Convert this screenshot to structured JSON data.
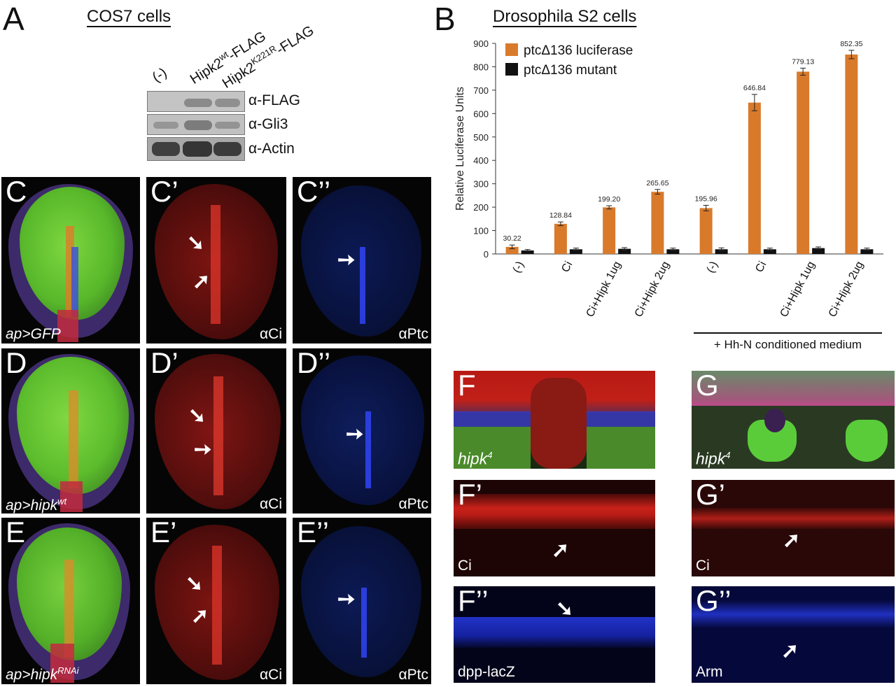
{
  "panelA": {
    "letter": "A",
    "title": "COS7 cells",
    "lanes": [
      "(-)",
      "Hipk2",
      "Hipk2"
    ],
    "lane_sup": [
      "",
      "wt",
      "K221R"
    ],
    "lane_suffix": [
      "",
      "-FLAG",
      "-FLAG"
    ],
    "blot_labels": [
      "α-FLAG",
      "α-Gli3",
      "α-Actin"
    ]
  },
  "panelB": {
    "letter": "B",
    "title": "Drosophila S2 cells",
    "bracket_label": "+ Hh-N conditioned medium"
  },
  "chart_data": {
    "type": "bar",
    "ylabel": "Relative Luciferase Units",
    "xlabel": "",
    "ylim": [
      0,
      900
    ],
    "yticks": [
      0,
      100,
      200,
      300,
      400,
      500,
      600,
      700,
      800,
      900
    ],
    "categories": [
      "(-)",
      "Ci",
      "Ci+Hipk 1ug",
      "Ci+Hipk 2ug",
      "(-)",
      "Ci",
      "Ci+Hipk 1ug",
      "Ci+Hipk 2ug"
    ],
    "series": [
      {
        "name": "ptcΔ136 luciferase",
        "color": "#d97a2b",
        "values": [
          30.22,
          128.84,
          199.2,
          265.65,
          195.96,
          646.84,
          779.13,
          852.35
        ],
        "errors": [
          8,
          8,
          7,
          10,
          12,
          35,
          15,
          18
        ]
      },
      {
        "name": "ptcΔ136 mutant",
        "color": "#111111",
        "values": [
          15,
          20,
          22,
          20,
          20,
          20,
          25,
          20
        ],
        "errors": [
          4,
          5,
          5,
          5,
          6,
          5,
          5,
          5
        ]
      }
    ],
    "data_labels": [
      "30.22",
      "128.84",
      "199.20",
      "265.65",
      "195.96",
      "646.84",
      "779.13",
      "852.35"
    ],
    "legend": "top-left",
    "grid": false
  },
  "wings": {
    "rows": [
      {
        "letter": "C",
        "caption": "ap>GFP",
        "caption_sup": ""
      },
      {
        "letter": "D",
        "caption": "ap>hipk",
        "caption_sup": "wt"
      },
      {
        "letter": "E",
        "caption": "ap>hipk",
        "caption_sup": "RNAi"
      }
    ],
    "ci_label": "αCi",
    "ptc_label": "αPtc"
  },
  "panelF": {
    "letters": [
      "F",
      "F’",
      "F’’"
    ],
    "caption_main": "hipk",
    "caption_sup": "4",
    "ci_label": "Ci",
    "dpp_label": "dpp-lacZ"
  },
  "panelG": {
    "letters": [
      "G",
      "G’",
      "G’’"
    ],
    "caption_main": "hipk",
    "caption_sup": "4",
    "ci_label": "Ci",
    "arm_label": "Arm"
  },
  "colors": {
    "orange": "#d97a2b",
    "black": "#111111",
    "gfp": "#6fd33a",
    "ci_red": "#d8221c",
    "ptc_blue": "#2a3be0"
  }
}
